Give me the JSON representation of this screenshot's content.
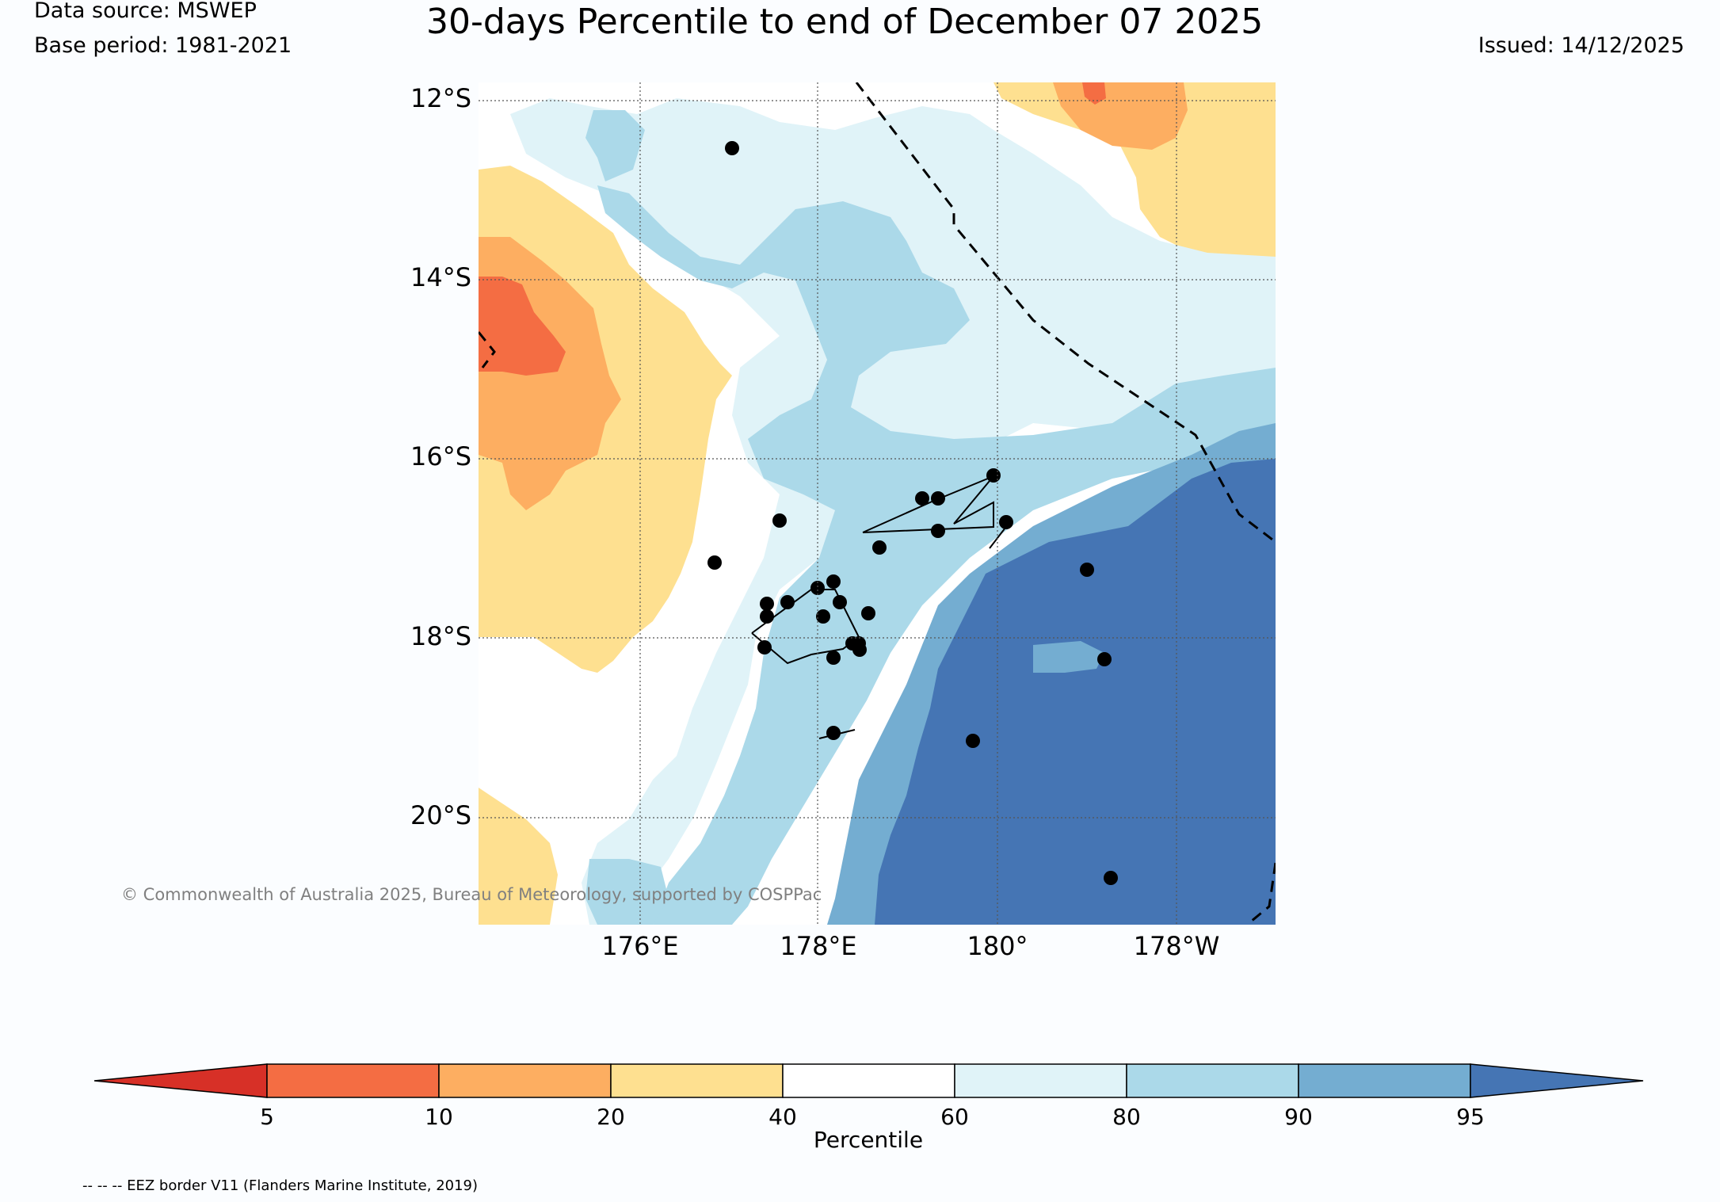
{
  "header": {
    "data_source": "Data source: MSWEP",
    "base_period": "Base period: 1981-2021",
    "title": "30-days Percentile to end of December 07 2025",
    "issued": "Issued: 14/12/2025"
  },
  "map": {
    "lat_labels": [
      "12°S",
      "14°S",
      "16°S",
      "18°S",
      "20°S"
    ],
    "lon_labels": [
      "176°E",
      "178°E",
      "180°",
      "178°W"
    ],
    "copyright": "© Commonwealth of Australia 2025, Bureau of Meteorology, supported by COSPPac",
    "colors": {
      "p0_5": "#d73027",
      "p5_10": "#f46d43",
      "p10_20": "#fdae61",
      "p20_40": "#fee090",
      "p40_60": "#ffffff",
      "p60_80": "#e0f3f8",
      "p80_90": "#abd9e9",
      "p90_95": "#74add1",
      "p95_100": "#4575b4"
    }
  },
  "colorbar": {
    "label": "Percentile",
    "ticks": [
      "5",
      "10",
      "20",
      "40",
      "60",
      "80",
      "90",
      "95"
    ]
  },
  "footer": {
    "eez_note": "-- -- -- EEZ border V11 (Flanders Marine Institute, 2019)"
  }
}
